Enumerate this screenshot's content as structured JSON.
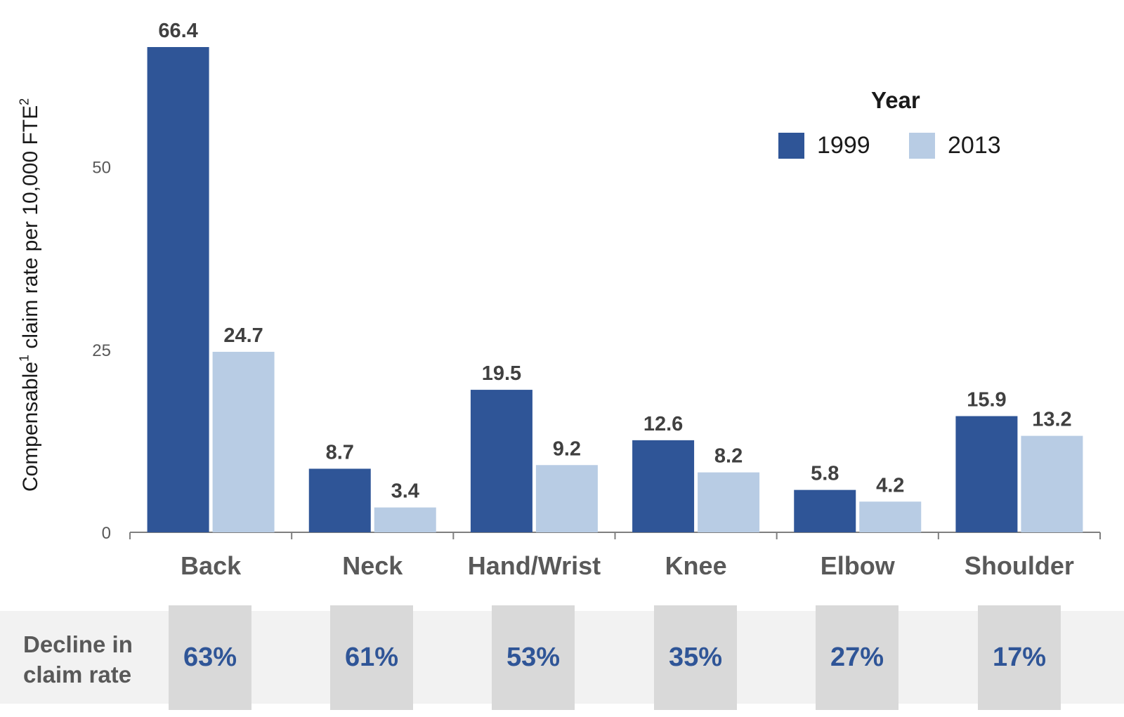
{
  "chart_data": {
    "type": "bar",
    "ylabel_parts": [
      "Compensable",
      "1",
      " claim rate per 10,000 FTE",
      "2"
    ],
    "categories": [
      "Back",
      "Neck",
      "Hand/Wrist",
      "Knee",
      "Elbow",
      "Shoulder"
    ],
    "series": [
      {
        "name": "1999",
        "color": "#2f5597",
        "values": [
          66.4,
          8.7,
          19.5,
          12.6,
          5.8,
          15.9
        ]
      },
      {
        "name": "2013",
        "color": "#b8cce4",
        "values": [
          24.7,
          3.4,
          9.2,
          8.2,
          4.2,
          13.2
        ]
      }
    ],
    "data_labels": {
      "1999": [
        "66.4",
        "8.7",
        "19.5",
        "12.6",
        "5.8",
        "15.9"
      ],
      "2013": [
        "24.7",
        "3.4",
        "9.2",
        "8.2",
        "4.2",
        "13.2"
      ]
    },
    "yticks": [
      0,
      25,
      50
    ],
    "ylim": [
      0,
      66.4
    ],
    "grid": false,
    "legend": {
      "title": "Year",
      "placement": "top-right"
    }
  },
  "decline": {
    "label_line1": "Decline in",
    "label_line2": "claim rate",
    "values": [
      "63%",
      "61%",
      "53%",
      "35%",
      "27%",
      "17%"
    ]
  }
}
